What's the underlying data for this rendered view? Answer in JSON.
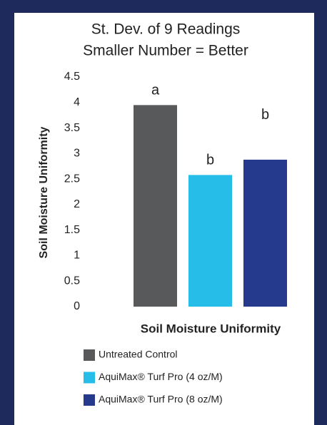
{
  "chart_data": {
    "type": "bar",
    "title": "St. Dev. of 9 Readings",
    "subtitle": "Smaller Number = Better",
    "y_label": "Soil Moisture Uniformity",
    "x_label": "Soil Moisture Uniformity",
    "series": [
      {
        "name": "Untreated Control",
        "color": "#58595b",
        "values": [
          3.95
        ]
      },
      {
        "name": "AquiMax® Turf Pro (4 oz/M)",
        "color": "#27bde9",
        "values": [
          2.58
        ]
      },
      {
        "name": "AquiMax® Turf Pro (8 oz/M)",
        "color": "#253a8c",
        "values": [
          2.88
        ]
      }
    ],
    "annotations": [
      "a",
      "b",
      "b"
    ],
    "ylim": [
      0,
      4.5
    ],
    "yticks": [
      0,
      0.5,
      1,
      1.5,
      2,
      2.5,
      3,
      3.5,
      4,
      4.5
    ],
    "grid": false
  }
}
